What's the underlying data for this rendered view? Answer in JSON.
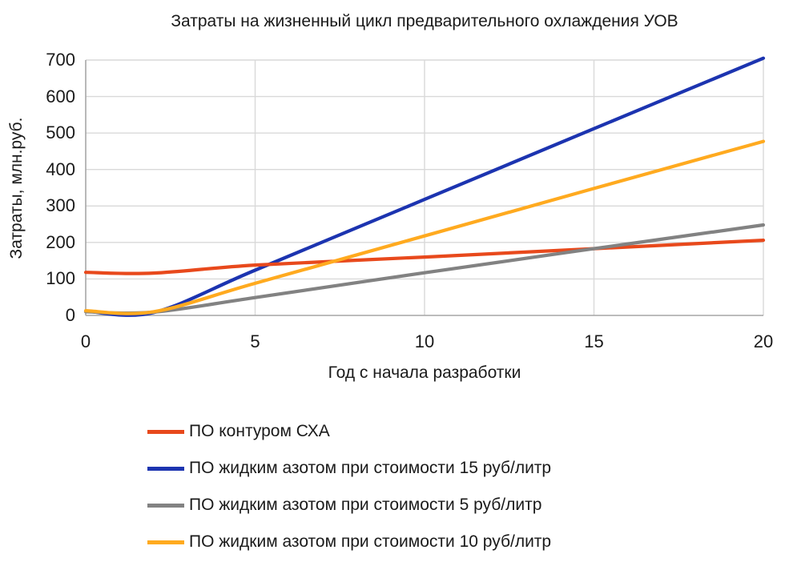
{
  "chart_data": {
    "type": "line",
    "title": "Затраты на жизненный цикл предварительного охлаждения УОВ",
    "xlabel": "Год с начала разработки",
    "ylabel": "Затраты, млн.руб.",
    "xlim": [
      0,
      20
    ],
    "ylim": [
      0,
      700
    ],
    "x_ticks": [
      0,
      5,
      10,
      15,
      20
    ],
    "y_ticks": [
      0,
      100,
      200,
      300,
      400,
      500,
      600,
      700
    ],
    "grid": true,
    "legend_position": "bottom-left",
    "series": [
      {
        "name": "ПО контуром СХА",
        "color": "#e8491c",
        "points": [
          [
            0,
            118
          ],
          [
            2,
            116
          ],
          [
            5,
            138
          ],
          [
            10,
            160
          ],
          [
            15,
            183
          ],
          [
            20,
            206
          ]
        ]
      },
      {
        "name": "ПО жидким азотом при стоимости 15 руб/литр",
        "color": "#1c34b0",
        "points": [
          [
            0,
            12
          ],
          [
            2,
            8
          ],
          [
            5,
            124
          ],
          [
            10,
            318
          ],
          [
            15,
            512
          ],
          [
            20,
            705
          ]
        ]
      },
      {
        "name": "ПО жидким азотом при стоимости 5 руб/литр",
        "color": "#828282",
        "points": [
          [
            0,
            10
          ],
          [
            2,
            9
          ],
          [
            5,
            49
          ],
          [
            10,
            117
          ],
          [
            15,
            183
          ],
          [
            20,
            248
          ]
        ]
      },
      {
        "name": "ПО жидким азотом при стоимости 10 руб/литр",
        "color": "#ffaa1f",
        "points": [
          [
            0,
            13
          ],
          [
            2,
            10
          ],
          [
            5,
            88
          ],
          [
            10,
            218
          ],
          [
            15,
            348
          ],
          [
            20,
            477
          ]
        ]
      }
    ],
    "draw_order": [
      1,
      0,
      2,
      3
    ]
  },
  "colors": {
    "gridline": "#d9d9d9",
    "axis_line": "#a6a6a6",
    "text": "#1a1a1a",
    "background": "#ffffff"
  }
}
